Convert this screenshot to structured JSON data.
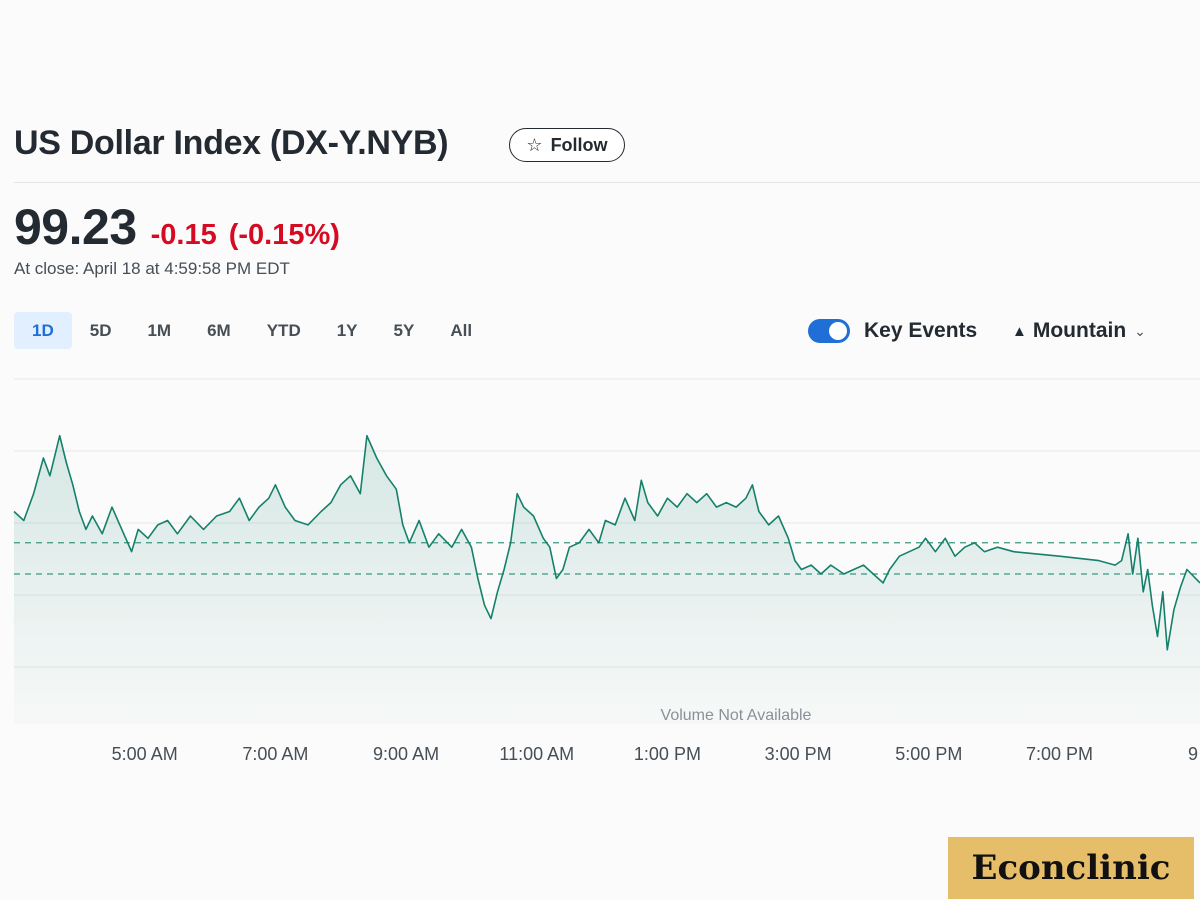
{
  "header": {
    "title": "US Dollar Index (DX-Y.NYB)",
    "follow_label": "Follow",
    "follow_icon": "star-outline-icon"
  },
  "quote": {
    "price": "99.23",
    "change": "-0.15",
    "change_pct": "(-0.15%)",
    "close_note": "At close: April 18 at 4:59:58 PM EDT",
    "change_color": "#d60a22"
  },
  "range_tabs": [
    {
      "label": "1D",
      "active": true
    },
    {
      "label": "5D",
      "active": false
    },
    {
      "label": "1M",
      "active": false
    },
    {
      "label": "6M",
      "active": false
    },
    {
      "label": "YTD",
      "active": false
    },
    {
      "label": "1Y",
      "active": false
    },
    {
      "label": "5Y",
      "active": false
    },
    {
      "label": "All",
      "active": false
    }
  ],
  "controls": {
    "key_events_label": "Key Events",
    "key_events_on": true,
    "chart_type_label": "Mountain",
    "chart_type_icon": "mountain-icon",
    "chevron_icon": "chevron-down-icon"
  },
  "chart_data": {
    "type": "area",
    "x_axis_ticks": [
      "5:00 AM",
      "7:00 AM",
      "9:00 AM",
      "11:00 AM",
      "1:00 PM",
      "3:00 PM",
      "5:00 PM",
      "7:00 PM",
      "9"
    ],
    "x_hours": [
      5,
      7,
      9,
      11,
      13,
      15,
      17,
      19,
      21
    ],
    "x_range": [
      3.0,
      21.15
    ],
    "y_range": [
      98.9,
      99.55
    ],
    "volume_note": "Volume Not Available",
    "grid": true,
    "reference_lines": [
      99.23,
      99.16
    ],
    "line_color": "#16806a",
    "series": [
      {
        "points": [
          [
            3.0,
            99.3
          ],
          [
            3.15,
            99.28
          ],
          [
            3.3,
            99.34
          ],
          [
            3.45,
            99.42
          ],
          [
            3.55,
            99.38
          ],
          [
            3.7,
            99.47
          ],
          [
            3.8,
            99.41
          ],
          [
            3.9,
            99.36
          ],
          [
            4.0,
            99.3
          ],
          [
            4.1,
            99.26
          ],
          [
            4.2,
            99.29
          ],
          [
            4.35,
            99.25
          ],
          [
            4.5,
            99.31
          ],
          [
            4.65,
            99.26
          ],
          [
            4.8,
            99.21
          ],
          [
            4.9,
            99.26
          ],
          [
            5.05,
            99.24
          ],
          [
            5.2,
            99.27
          ],
          [
            5.35,
            99.28
          ],
          [
            5.5,
            99.25
          ],
          [
            5.7,
            99.29
          ],
          [
            5.9,
            99.26
          ],
          [
            6.1,
            99.29
          ],
          [
            6.3,
            99.3
          ],
          [
            6.45,
            99.33
          ],
          [
            6.6,
            99.28
          ],
          [
            6.75,
            99.31
          ],
          [
            6.9,
            99.33
          ],
          [
            7.0,
            99.36
          ],
          [
            7.15,
            99.31
          ],
          [
            7.3,
            99.28
          ],
          [
            7.5,
            99.27
          ],
          [
            7.7,
            99.3
          ],
          [
            7.85,
            99.32
          ],
          [
            8.0,
            99.36
          ],
          [
            8.15,
            99.38
          ],
          [
            8.3,
            99.34
          ],
          [
            8.4,
            99.47
          ],
          [
            8.55,
            99.42
          ],
          [
            8.7,
            99.38
          ],
          [
            8.85,
            99.35
          ],
          [
            8.95,
            99.27
          ],
          [
            9.05,
            99.23
          ],
          [
            9.2,
            99.28
          ],
          [
            9.35,
            99.22
          ],
          [
            9.5,
            99.25
          ],
          [
            9.7,
            99.22
          ],
          [
            9.85,
            99.26
          ],
          [
            10.0,
            99.22
          ],
          [
            10.1,
            99.15
          ],
          [
            10.2,
            99.09
          ],
          [
            10.3,
            99.06
          ],
          [
            10.4,
            99.12
          ],
          [
            10.5,
            99.17
          ],
          [
            10.6,
            99.23
          ],
          [
            10.7,
            99.34
          ],
          [
            10.8,
            99.31
          ],
          [
            10.95,
            99.29
          ],
          [
            11.1,
            99.24
          ],
          [
            11.2,
            99.22
          ],
          [
            11.3,
            99.15
          ],
          [
            11.4,
            99.17
          ],
          [
            11.5,
            99.22
          ],
          [
            11.65,
            99.23
          ],
          [
            11.8,
            99.26
          ],
          [
            11.95,
            99.23
          ],
          [
            12.05,
            99.28
          ],
          [
            12.2,
            99.27
          ],
          [
            12.35,
            99.33
          ],
          [
            12.5,
            99.28
          ],
          [
            12.6,
            99.37
          ],
          [
            12.7,
            99.32
          ],
          [
            12.85,
            99.29
          ],
          [
            13.0,
            99.33
          ],
          [
            13.15,
            99.31
          ],
          [
            13.3,
            99.34
          ],
          [
            13.45,
            99.32
          ],
          [
            13.6,
            99.34
          ],
          [
            13.75,
            99.31
          ],
          [
            13.9,
            99.32
          ],
          [
            14.05,
            99.31
          ],
          [
            14.2,
            99.33
          ],
          [
            14.3,
            99.36
          ],
          [
            14.4,
            99.3
          ],
          [
            14.55,
            99.27
          ],
          [
            14.7,
            99.29
          ],
          [
            14.85,
            99.24
          ],
          [
            14.95,
            99.19
          ],
          [
            15.05,
            99.17
          ],
          [
            15.2,
            99.18
          ],
          [
            15.35,
            99.16
          ],
          [
            15.5,
            99.18
          ],
          [
            15.7,
            99.16
          ],
          [
            15.85,
            99.17
          ],
          [
            16.0,
            99.18
          ],
          [
            16.15,
            99.16
          ],
          [
            16.3,
            99.14
          ],
          [
            16.4,
            99.17
          ],
          [
            16.55,
            99.2
          ],
          [
            16.7,
            99.21
          ],
          [
            16.85,
            99.22
          ],
          [
            16.95,
            99.24
          ],
          [
            17.1,
            99.21
          ],
          [
            17.25,
            99.24
          ],
          [
            17.4,
            99.2
          ],
          [
            17.55,
            99.22
          ],
          [
            17.7,
            99.23
          ],
          [
            17.85,
            99.21
          ],
          [
            18.05,
            99.22
          ],
          [
            18.3,
            99.21
          ],
          [
            19.0,
            99.2
          ],
          [
            19.6,
            99.19
          ],
          [
            19.85,
            99.18
          ],
          [
            19.95,
            99.19
          ],
          [
            20.05,
            99.25
          ],
          [
            20.12,
            99.16
          ],
          [
            20.2,
            99.24
          ],
          [
            20.28,
            99.12
          ],
          [
            20.35,
            99.17
          ],
          [
            20.42,
            99.09
          ],
          [
            20.5,
            99.02
          ],
          [
            20.58,
            99.12
          ],
          [
            20.65,
            98.99
          ],
          [
            20.75,
            99.08
          ],
          [
            20.85,
            99.13
          ],
          [
            20.95,
            99.17
          ],
          [
            21.15,
            99.14
          ]
        ]
      }
    ]
  },
  "brand": {
    "name": "Econclinic",
    "bg_color": "#e6be6a"
  }
}
